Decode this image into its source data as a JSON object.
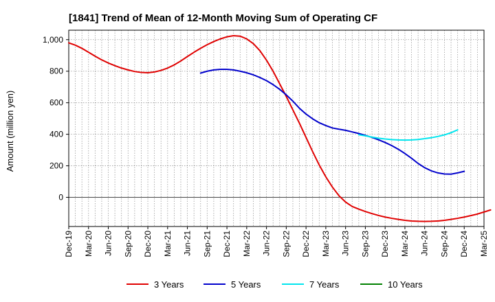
{
  "chart_data": {
    "type": "line",
    "title": "[1841]  Trend of Mean of 12-Month Moving Sum of Operating CF",
    "ylabel": "Amount (million yen)",
    "xlabel": "",
    "ylim": [
      -185,
      1060
    ],
    "yticks": [
      0,
      200,
      400,
      600,
      800,
      1000
    ],
    "ytick_labels": [
      "0",
      "200",
      "400",
      "600",
      "800",
      "1,000"
    ],
    "x_start": "2019-12",
    "x_end": "2025-03",
    "x_tick_labels": [
      "Dec-19",
      "Mar-20",
      "Jun-20",
      "Sep-20",
      "Dec-20",
      "Mar-21",
      "Jun-21",
      "Sep-21",
      "Dec-21",
      "Mar-22",
      "Jun-22",
      "Sep-22",
      "Dec-22",
      "Mar-23",
      "Jun-23",
      "Sep-23",
      "Dec-23",
      "Mar-24",
      "Jun-24",
      "Sep-24",
      "Dec-24",
      "Mar-25"
    ],
    "grid": true,
    "series": [
      {
        "name": "3 Years",
        "color": "#e00000",
        "start": "2019-12",
        "values": [
          980,
          965,
          945,
          920,
          895,
          872,
          852,
          835,
          820,
          808,
          798,
          792,
          790,
          795,
          805,
          820,
          840,
          865,
          893,
          920,
          945,
          968,
          988,
          1005,
          1018,
          1025,
          1022,
          1005,
          975,
          930,
          870,
          800,
          720,
          640,
          555,
          470,
          380,
          290,
          205,
          130,
          65,
          10,
          -30,
          -58,
          -75,
          -90,
          -103,
          -115,
          -125,
          -133,
          -140,
          -146,
          -150,
          -152,
          -153,
          -152,
          -150,
          -146,
          -140,
          -133,
          -125,
          -116,
          -106,
          -93,
          -80
        ]
      },
      {
        "name": "5 Years",
        "color": "#0000cc",
        "start": "2021-08",
        "values": [
          788,
          800,
          808,
          812,
          812,
          808,
          800,
          790,
          777,
          760,
          740,
          715,
          685,
          650,
          610,
          565,
          528,
          498,
          473,
          455,
          440,
          432,
          425,
          415,
          405,
          393,
          380,
          365,
          348,
          328,
          305,
          278,
          248,
          215,
          188,
          168,
          155,
          148,
          147,
          155,
          165
        ]
      },
      {
        "name": "7 Years",
        "color": "#00e5ee",
        "start": "2023-08",
        "values": [
          397,
          390,
          382,
          375,
          370,
          366,
          364,
          363,
          364,
          367,
          372,
          378,
          386,
          396,
          410,
          428
        ]
      },
      {
        "name": "10 Years",
        "color": "#008000",
        "start": "2024-09",
        "values": []
      }
    ]
  }
}
